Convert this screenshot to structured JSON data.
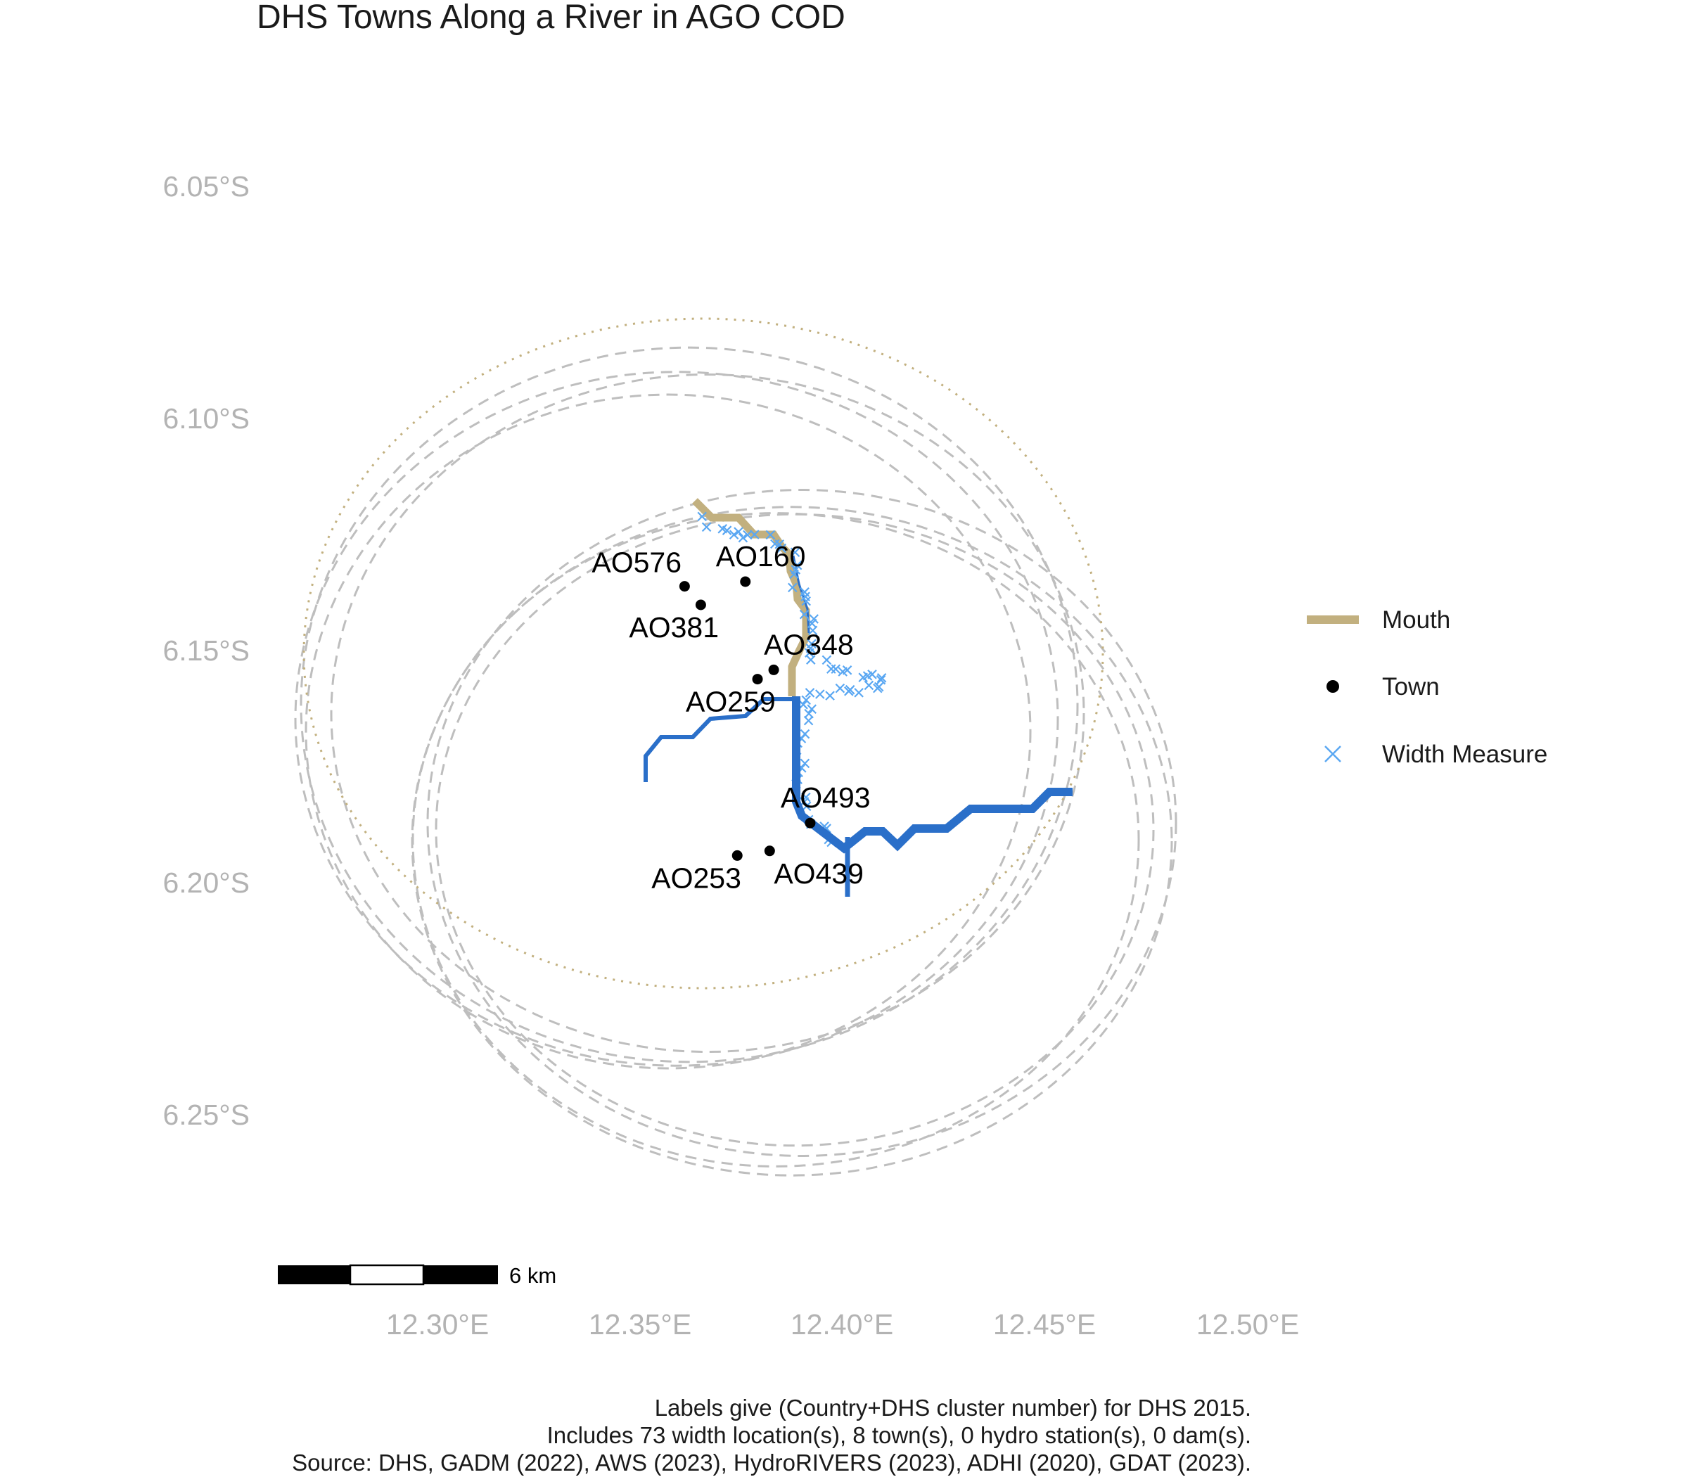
{
  "title": "DHS Towns Along a River in AGO COD",
  "axes": {
    "y_ticks": [
      "6.05°S",
      "6.10°S",
      "6.15°S",
      "6.20°S",
      "6.25°S"
    ],
    "x_ticks": [
      "12.30°E",
      "12.35°E",
      "12.40°E",
      "12.45°E",
      "12.50°E"
    ]
  },
  "legend": {
    "items": [
      {
        "label": "Mouth",
        "symbol": "line",
        "color": "#c2b07f"
      },
      {
        "label": "Town",
        "symbol": "point",
        "color": "#000000"
      },
      {
        "label": "Width Measure",
        "symbol": "cross",
        "color": "#5aa7f2"
      }
    ]
  },
  "scale_bar": {
    "label": "6 km"
  },
  "caption": [
    "Labels give (Country+DHS cluster number) for DHS 2015.",
    "Includes 73 width location(s), 8 town(s), 0 hydro station(s), 0 dam(s).",
    "Source: DHS, GADM (2022), AWS (2023), HydroRIVERS (2023), ADHI (2020), GDAT (2023)."
  ],
  "colors": {
    "river": "#2a6fc9",
    "mouth": "#c2b07f",
    "width_measure": "#5aa7f2",
    "buffer": "#bebebe",
    "axis_text": "#b3b3b3"
  },
  "chart_data": {
    "type": "scatter",
    "title": "DHS Towns Along a River in AGO COD",
    "xlim": [
      12.26,
      12.52
    ],
    "ylim": [
      -6.28,
      -6.02
    ],
    "towns": [
      {
        "label": "AO576",
        "lon": 12.361,
        "lat": -6.136
      },
      {
        "label": "AO160",
        "lon": 12.376,
        "lat": -6.135
      },
      {
        "label": "AO381",
        "lon": 12.365,
        "lat": -6.14
      },
      {
        "label": "AO348",
        "lon": 12.383,
        "lat": -6.154
      },
      {
        "label": "AO259",
        "lon": 12.379,
        "lat": -6.156
      },
      {
        "label": "AO493",
        "lon": 12.392,
        "lat": -6.187
      },
      {
        "label": "AO253",
        "lon": 12.374,
        "lat": -6.194
      },
      {
        "label": "AO439",
        "lon": 12.382,
        "lat": -6.193
      }
    ],
    "width_measure_count": 73
  }
}
